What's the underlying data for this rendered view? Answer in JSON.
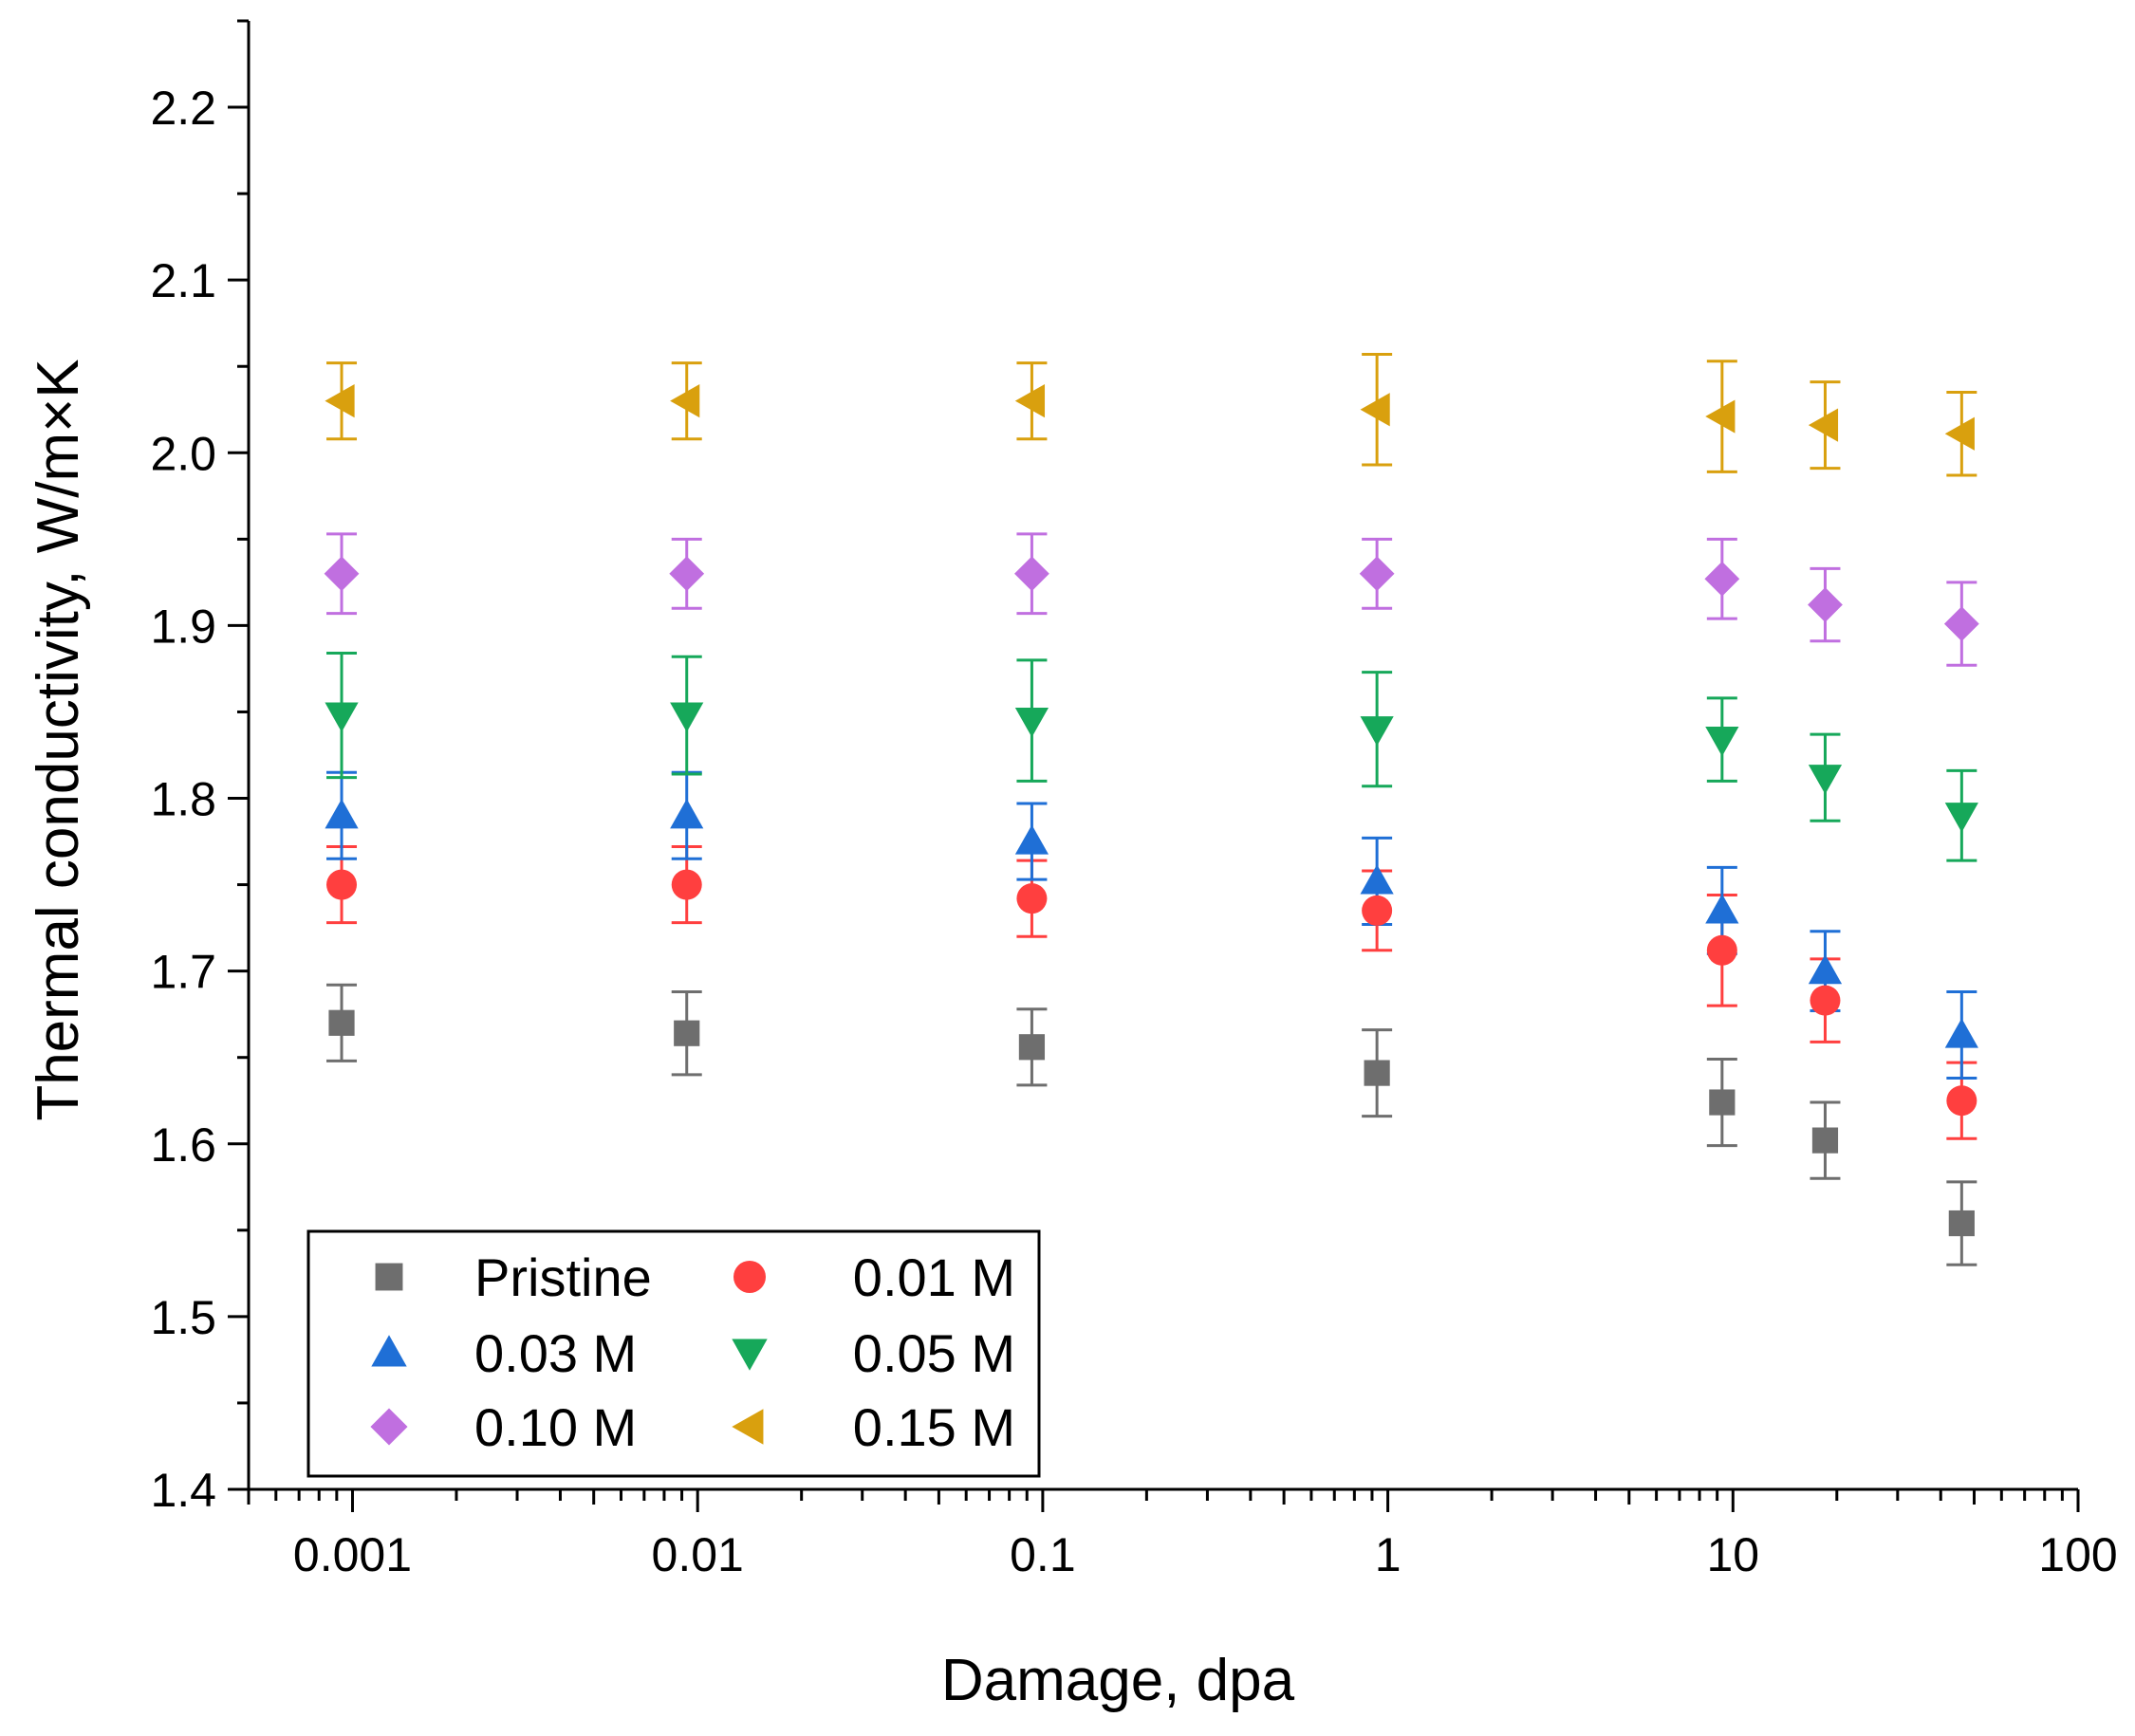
{
  "chart_data": {
    "type": "scatter",
    "xlabel": "Damage, dpa",
    "ylabel": "Thermal conductivity, W/m×K",
    "xscale": "log",
    "xlim": [
      0.0005,
      100
    ],
    "ylim": [
      1.4,
      2.25
    ],
    "xticks": [
      {
        "value": 0.001,
        "label": "0.001"
      },
      {
        "value": 0.01,
        "label": "0.01"
      },
      {
        "value": 0.1,
        "label": "0.1"
      },
      {
        "value": 1,
        "label": "1"
      },
      {
        "value": 10,
        "label": "10"
      },
      {
        "value": 100,
        "label": "100"
      }
    ],
    "yticks": [
      {
        "value": 1.4,
        "label": "1.4"
      },
      {
        "value": 1.5,
        "label": "1.5"
      },
      {
        "value": 1.6,
        "label": "1.6"
      },
      {
        "value": 1.7,
        "label": "1.7"
      },
      {
        "value": 1.8,
        "label": "1.8"
      },
      {
        "value": 1.9,
        "label": "1.9"
      },
      {
        "value": 2.0,
        "label": "2.0"
      },
      {
        "value": 2.1,
        "label": "2.1"
      },
      {
        "value": 2.2,
        "label": "2.2"
      }
    ],
    "grid": false,
    "legend_position": "bottom-left",
    "series": [
      {
        "name": "Pristine",
        "marker": "square",
        "color": "#6e6e6e",
        "x": [
          0.00093,
          0.0093,
          0.093,
          0.93,
          9.3,
          18.5,
          46
        ],
        "y": [
          1.67,
          1.664,
          1.656,
          1.641,
          1.624,
          1.602,
          1.554
        ],
        "err": [
          0.022,
          0.024,
          0.022,
          0.025,
          0.025,
          0.022,
          0.024
        ]
      },
      {
        "name": "0.01 M",
        "marker": "circle",
        "color": "#ff3f3f",
        "x": [
          0.00093,
          0.0093,
          0.093,
          0.93,
          9.3,
          18.5,
          46
        ],
        "y": [
          1.75,
          1.75,
          1.742,
          1.735,
          1.712,
          1.683,
          1.625
        ],
        "err": [
          0.022,
          0.022,
          0.022,
          0.023,
          0.032,
          0.024,
          0.022
        ]
      },
      {
        "name": "0.03 M",
        "marker": "triangle-up",
        "color": "#1f6fd6",
        "x": [
          0.00093,
          0.0093,
          0.093,
          0.93,
          9.3,
          18.5,
          46
        ],
        "y": [
          1.79,
          1.79,
          1.775,
          1.752,
          1.735,
          1.7,
          1.663
        ],
        "err": [
          0.025,
          0.025,
          0.022,
          0.025,
          0.025,
          0.023,
          0.025
        ]
      },
      {
        "name": "0.05 M",
        "marker": "triangle-down",
        "color": "#16a85a",
        "x": [
          0.00093,
          0.0093,
          0.093,
          0.93,
          9.3,
          18.5,
          46
        ],
        "y": [
          1.848,
          1.848,
          1.845,
          1.84,
          1.834,
          1.812,
          1.79
        ],
        "err": [
          0.036,
          0.034,
          0.035,
          0.033,
          0.024,
          0.025,
          0.026
        ]
      },
      {
        "name": "0.10 M",
        "marker": "diamond",
        "color": "#c06fe0",
        "x": [
          0.00093,
          0.0093,
          0.093,
          0.93,
          9.3,
          18.5,
          46
        ],
        "y": [
          1.93,
          1.93,
          1.93,
          1.93,
          1.927,
          1.912,
          1.901
        ],
        "err": [
          0.023,
          0.02,
          0.023,
          0.02,
          0.023,
          0.021,
          0.024
        ]
      },
      {
        "name": "0.15 M",
        "marker": "triangle-left",
        "color": "#d9a00e",
        "x": [
          0.00093,
          0.0093,
          0.093,
          0.93,
          9.3,
          18.5,
          46
        ],
        "y": [
          2.03,
          2.03,
          2.03,
          2.025,
          2.021,
          2.016,
          2.011
        ],
        "err": [
          0.022,
          0.022,
          0.022,
          0.032,
          0.032,
          0.025,
          0.024
        ]
      }
    ]
  }
}
